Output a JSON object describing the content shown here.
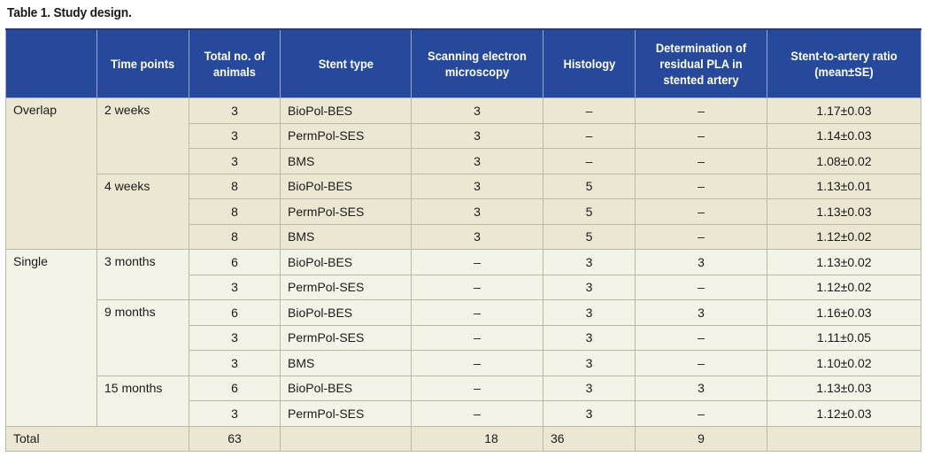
{
  "title": "Table 1. Study design.",
  "headers": {
    "group": "",
    "time_points": "Time points",
    "total_animals": "Total no. of animals",
    "stent_type": "Stent type",
    "sem": "Scanning electron microscopy",
    "histology": "Histology",
    "residual_pla": "Determination of residual PLA  in stented artery",
    "ratio": "Stent-to-artery ratio (mean±SE)"
  },
  "groups": [
    {
      "name": "Overlap",
      "timepoints": [
        {
          "label": "2 weeks",
          "rows": [
            {
              "animals": "3",
              "stent": "BioPol-BES",
              "sem": "3",
              "histology": "–",
              "pla": "–",
              "ratio": "1.17±0.03"
            },
            {
              "animals": "3",
              "stent": "PermPol-SES",
              "sem": "3",
              "histology": "–",
              "pla": "–",
              "ratio": "1.14±0.03"
            },
            {
              "animals": "3",
              "stent": "BMS",
              "sem": "3",
              "histology": "–",
              "pla": "–",
              "ratio": "1.08±0.02"
            }
          ]
        },
        {
          "label": "4 weeks",
          "rows": [
            {
              "animals": "8",
              "stent": "BioPol-BES",
              "sem": "3",
              "histology": "5",
              "pla": "–",
              "ratio": "1.13±0.01"
            },
            {
              "animals": "8",
              "stent": "PermPol-SES",
              "sem": "3",
              "histology": "5",
              "pla": "–",
              "ratio": "1.13±0.03"
            },
            {
              "animals": "8",
              "stent": "BMS",
              "sem": "3",
              "histology": "5",
              "pla": "–",
              "ratio": "1.12±0.02"
            }
          ]
        }
      ]
    },
    {
      "name": "Single",
      "timepoints": [
        {
          "label": "3 months",
          "rows": [
            {
              "animals": "6",
              "stent": "BioPol-BES",
              "sem": "–",
              "histology": "3",
              "pla": "3",
              "ratio": "1.13±0.02"
            },
            {
              "animals": "3",
              "stent": "PermPol-SES",
              "sem": "–",
              "histology": "3",
              "pla": "–",
              "ratio": "1.12±0.02"
            }
          ]
        },
        {
          "label": "9 months",
          "rows": [
            {
              "animals": "6",
              "stent": "BioPol-BES",
              "sem": "–",
              "histology": "3",
              "pla": "3",
              "ratio": "1.16±0.03"
            },
            {
              "animals": "3",
              "stent": "PermPol-SES",
              "sem": "–",
              "histology": "3",
              "pla": "–",
              "ratio": "1.11±0.05"
            },
            {
              "animals": "3",
              "stent": "BMS",
              "sem": "–",
              "histology": "3",
              "pla": "–",
              "ratio": "1.10±0.02"
            }
          ]
        },
        {
          "label": "15 months",
          "rows": [
            {
              "animals": "6",
              "stent": "BioPol-BES",
              "sem": "–",
              "histology": "3",
              "pla": "3",
              "ratio": "1.13±0.03"
            },
            {
              "animals": "3",
              "stent": "PermPol-SES",
              "sem": "–",
              "histology": "3",
              "pla": "–",
              "ratio": "1.12±0.03"
            }
          ]
        }
      ]
    }
  ],
  "total": {
    "label": "Total",
    "animals": "63",
    "sem": "18",
    "histology": "36",
    "pla": "9"
  },
  "colors": {
    "header_bg": "#27499b",
    "overlap_bg": "#ece7d3",
    "single_bg": "#f4f3e8"
  }
}
